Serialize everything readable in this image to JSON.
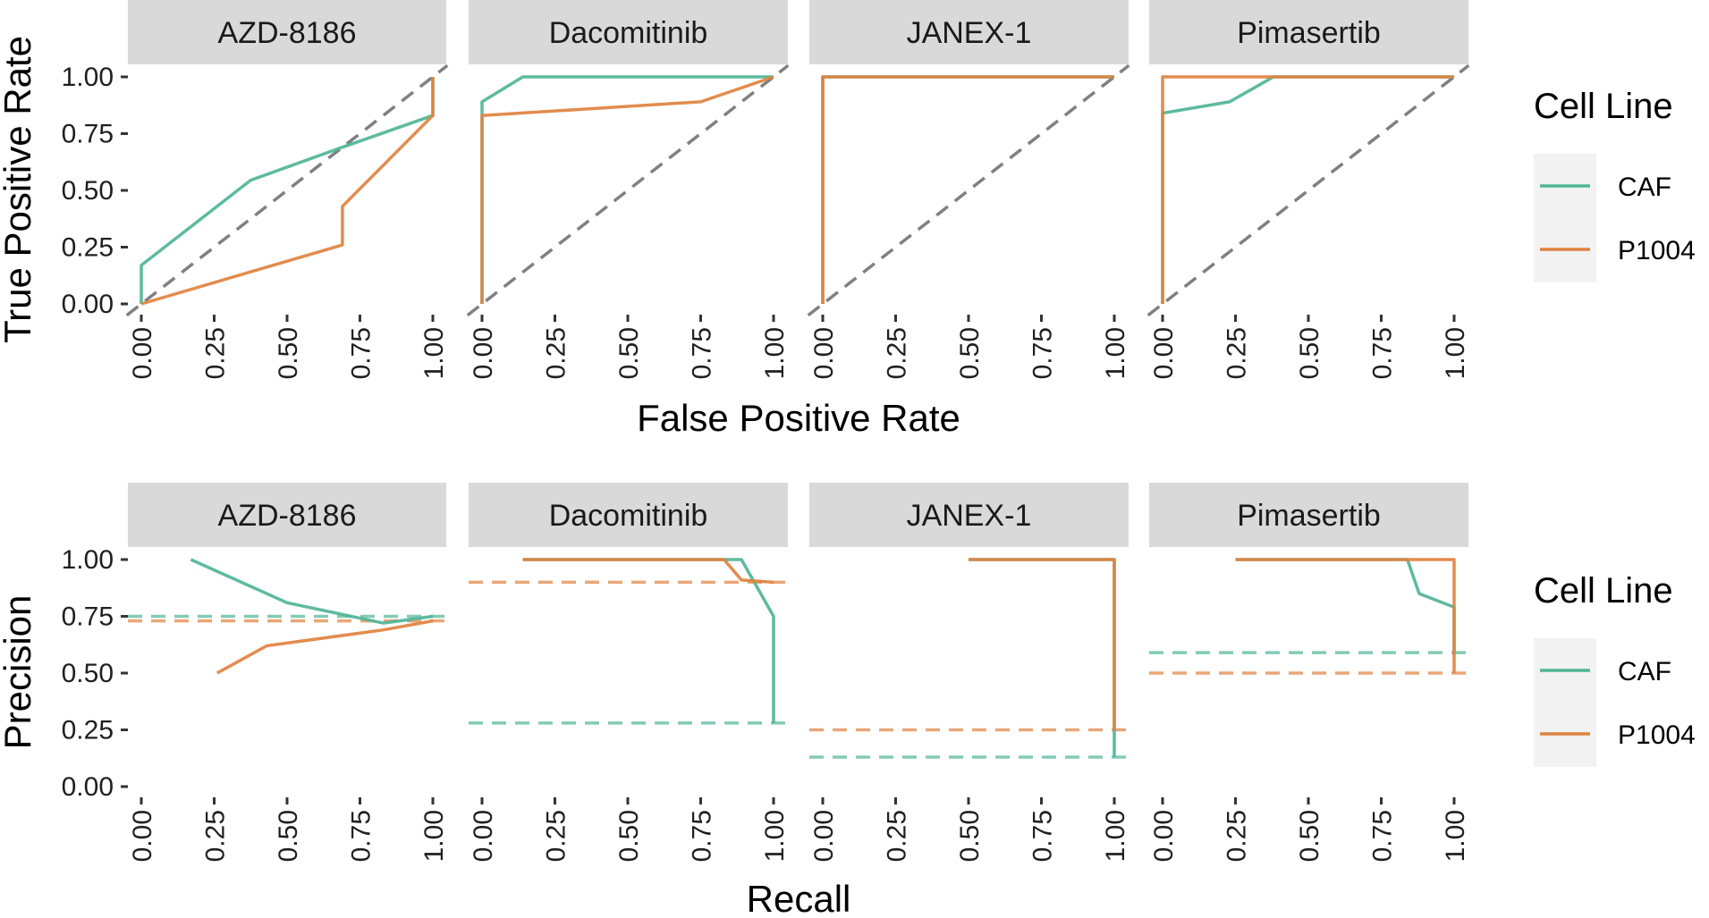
{
  "chart_data": [
    {
      "type": "line",
      "xlabel": "False Positive Rate",
      "ylabel": "True Positive Rate",
      "xlim": [
        0,
        1
      ],
      "ylim": [
        0,
        1
      ],
      "x_ticks": [
        "0.00",
        "0.25",
        "0.50",
        "0.75",
        "1.00"
      ],
      "y_ticks": [
        "0.00",
        "0.25",
        "0.50",
        "0.75",
        "1.00"
      ],
      "grid": false,
      "reference": "diagonal dashed line y = x",
      "legend": {
        "title": "Cell Line",
        "position": "right",
        "entries": [
          "CAF",
          "P1004"
        ]
      },
      "panels": [
        {
          "title": "AZD-8186",
          "series": [
            {
              "name": "CAF",
              "points": [
                [
                  0,
                  0
                ],
                [
                  0,
                  0.17
                ],
                [
                  0.375,
                  0.545
                ],
                [
                  0.69,
                  0.69
                ],
                [
                  1,
                  0.83
                ],
                [
                  1,
                  1
                ]
              ]
            },
            {
              "name": "P1004",
              "points": [
                [
                  0,
                  0
                ],
                [
                  0.69,
                  0.26
                ],
                [
                  0.69,
                  0.43
                ],
                [
                  1,
                  0.83
                ],
                [
                  1,
                  1
                ]
              ]
            }
          ]
        },
        {
          "title": "Dacomitinib",
          "series": [
            {
              "name": "CAF",
              "points": [
                [
                  0,
                  0
                ],
                [
                  0,
                  0.89
                ],
                [
                  0.14,
                  1
                ],
                [
                  1,
                  1
                ]
              ]
            },
            {
              "name": "P1004",
              "points": [
                [
                  0,
                  0
                ],
                [
                  0,
                  0.83
                ],
                [
                  0.75,
                  0.89
                ],
                [
                  1,
                  1
                ]
              ]
            }
          ]
        },
        {
          "title": "JANEX-1",
          "series": [
            {
              "name": "CAF",
              "points": [
                [
                  0,
                  0
                ],
                [
                  0,
                  1
                ],
                [
                  1,
                  1
                ]
              ]
            },
            {
              "name": "P1004",
              "points": [
                [
                  0,
                  0
                ],
                [
                  0,
                  1
                ],
                [
                  1,
                  1
                ]
              ]
            }
          ]
        },
        {
          "title": "Pimasertib",
          "series": [
            {
              "name": "CAF",
              "points": [
                [
                  0,
                  0
                ],
                [
                  0,
                  0.84
                ],
                [
                  0.23,
                  0.89
                ],
                [
                  0.38,
                  1
                ],
                [
                  1,
                  1
                ]
              ]
            },
            {
              "name": "P1004",
              "points": [
                [
                  0,
                  0
                ],
                [
                  0,
                  1
                ],
                [
                  1,
                  1
                ]
              ]
            }
          ]
        }
      ]
    },
    {
      "type": "line",
      "xlabel": "Recall",
      "ylabel": "Precision",
      "xlim": [
        0,
        1
      ],
      "ylim": [
        0,
        1
      ],
      "x_ticks": [
        "0.00",
        "0.25",
        "0.50",
        "0.75",
        "1.00"
      ],
      "y_ticks": [
        "0.00",
        "0.25",
        "0.50",
        "0.75",
        "1.00"
      ],
      "grid": false,
      "reference": "dashed horizontal baseline per cell line",
      "legend": {
        "title": "Cell Line",
        "position": "right",
        "entries": [
          "CAF",
          "P1004"
        ]
      },
      "panels": [
        {
          "title": "AZD-8186",
          "baselines": {
            "CAF": 0.75,
            "P1004": 0.73
          },
          "series": [
            {
              "name": "CAF",
              "points": [
                [
                  0.17,
                  1.0
                ],
                [
                  0.5,
                  0.81
                ],
                [
                  0.83,
                  0.72
                ],
                [
                  1.0,
                  0.75
                ]
              ]
            },
            {
              "name": "P1004",
              "points": [
                [
                  0.26,
                  0.5
                ],
                [
                  0.43,
                  0.62
                ],
                [
                  0.83,
                  0.69
                ],
                [
                  1.0,
                  0.73
                ]
              ]
            }
          ]
        },
        {
          "title": "Dacomitinib",
          "baselines": {
            "CAF": 0.28,
            "P1004": 0.9
          },
          "series": [
            {
              "name": "CAF",
              "points": [
                [
                  0.14,
                  1.0
                ],
                [
                  0.89,
                  1.0
                ],
                [
                  1.0,
                  0.75
                ],
                [
                  1.0,
                  0.28
                ]
              ]
            },
            {
              "name": "P1004",
              "points": [
                [
                  0.14,
                  1.0
                ],
                [
                  0.83,
                  1.0
                ],
                [
                  0.89,
                  0.91
                ],
                [
                  1.0,
                  0.9
                ]
              ]
            }
          ]
        },
        {
          "title": "JANEX-1",
          "baselines": {
            "CAF": 0.13,
            "P1004": 0.25
          },
          "series": [
            {
              "name": "CAF",
              "points": [
                [
                  0.5,
                  1.0
                ],
                [
                  1.0,
                  1.0
                ],
                [
                  1.0,
                  0.13
                ]
              ]
            },
            {
              "name": "P1004",
              "points": [
                [
                  0.5,
                  1.0
                ],
                [
                  1.0,
                  1.0
                ],
                [
                  1.0,
                  0.25
                ]
              ]
            }
          ]
        },
        {
          "title": "Pimasertib",
          "baselines": {
            "CAF": 0.59,
            "P1004": 0.5
          },
          "series": [
            {
              "name": "CAF",
              "points": [
                [
                  0.25,
                  1.0
                ],
                [
                  0.84,
                  1.0
                ],
                [
                  0.88,
                  0.85
                ],
                [
                  1.0,
                  0.79
                ],
                [
                  1.0,
                  0.59
                ]
              ]
            },
            {
              "name": "P1004",
              "points": [
                [
                  0.25,
                  1.0
                ],
                [
                  1.0,
                  1.0
                ],
                [
                  1.0,
                  0.5
                ]
              ]
            }
          ]
        }
      ]
    }
  ],
  "colors": {
    "CAF": "#4fb596",
    "P1004": "#e0823f",
    "reference_line": "#808080",
    "strip_background": "#d9d9d9",
    "legend_key_background": "#f2f2f2"
  }
}
